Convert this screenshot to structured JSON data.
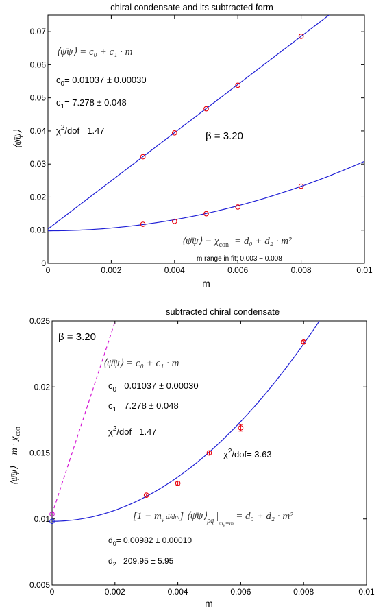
{
  "chart_data": [
    {
      "type": "scatter",
      "title": "chiral condensate and its subtracted form",
      "xlabel": "m",
      "ylabel": "⟨ψ̄ψ⟩",
      "xlim": [
        0,
        0.01
      ],
      "ylim": [
        0,
        0.075
      ],
      "xticks": [
        "0",
        "0.002",
        "0.004",
        "0.006",
        "0.008",
        "0.01"
      ],
      "yticks": [
        "0",
        "0.01",
        "0.02",
        "0.03",
        "0.04",
        "0.05",
        "0.06",
        "0.07"
      ],
      "grid": false,
      "series": [
        {
          "x": [
            0.003,
            0.004,
            0.005,
            0.006,
            0.008
          ],
          "values": [
            0.0322,
            0.0394,
            0.0467,
            0.0538,
            0.0686
          ],
          "color": "#e8000b"
        },
        {
          "x": [
            0.003,
            0.004,
            0.005,
            0.006,
            0.008
          ],
          "values": [
            0.0118,
            0.0127,
            0.015,
            0.017,
            0.0233
          ],
          "color": "#e8000b"
        }
      ],
      "fits": [
        {
          "kind": "linear",
          "c0": 0.01037,
          "c1": 7.278,
          "color": "#1f1fd6"
        },
        {
          "kind": "quadratic",
          "d0": 0.00982,
          "d2": 209.95,
          "color": "#1f1fd6"
        }
      ],
      "annotations": {
        "fit1_formula": "⟨ψ̄ψ⟩ = c₀ + c₁ · m",
        "c0_label": "c",
        "c0_sub": "0",
        "c0_value": "=  0.01037 ± 0.00030",
        "c1_label": "c",
        "c1_sub": "1",
        "c1_value": "=  7.278 ± 0.048",
        "chi_label": "χ",
        "chi_sup": "2",
        "chi_value": "/dof= 1.47",
        "beta": "β = 3.20",
        "fit2_formula": "⟨ψ̄ψ⟩ − χ",
        "fit2_sub": "con",
        "fit2_rhs": "= d₀ + d₂ · m²",
        "range_note": "m range in fit:  0.003 − 0.008"
      }
    },
    {
      "type": "scatter",
      "title": "subtracted chiral condensate",
      "xlabel": "m",
      "ylabel": "⟨ψ̄ψ⟩ − m · χ",
      "ylabel_sub": "con",
      "xlim": [
        0,
        0.01
      ],
      "ylim": [
        0.005,
        0.025
      ],
      "xticks": [
        "0",
        "0.002",
        "0.004",
        "0.006",
        "0.008",
        "0.01"
      ],
      "yticks": [
        "0.005",
        "0.01",
        "0.015",
        "0.02",
        "0.025"
      ],
      "grid": false,
      "series": [
        {
          "x": [
            0.003,
            0.004,
            0.005,
            0.006,
            0.008
          ],
          "values": [
            0.0118,
            0.0127,
            0.015,
            0.0169,
            0.0234
          ],
          "err": [
            8e-05,
            0.00015,
            0.00015,
            0.00025,
            0.0001
          ],
          "color": "#e8000b"
        },
        {
          "x": [
            0
          ],
          "values": [
            0.00982
          ],
          "color": "#1f1fd6"
        },
        {
          "x": [
            0
          ],
          "values": [
            0.01037
          ],
          "color": "#d417d4"
        }
      ],
      "fits": [
        {
          "kind": "quadratic",
          "d0": 0.00982,
          "d2": 209.95,
          "color": "#1f1fd6",
          "style": "solid"
        },
        {
          "kind": "linear",
          "c0": 0.01037,
          "c1": 7.278,
          "color": "#d417d4",
          "style": "dashed"
        }
      ],
      "annotations": {
        "beta": "β = 3.20",
        "fit1_formula": "⟨ψ̄ψ⟩ = c₀ + c₁ · m",
        "c0_label": "c",
        "c0_sub": "0",
        "c0_value": "=  0.01037 ± 0.00030",
        "c1_label": "c",
        "c1_sub": "1",
        "c1_value": "=  7.278 ± 0.048",
        "chi1_label": "χ",
        "chi1_sup": "2",
        "chi1_value": "/dof= 1.47",
        "chi2_label": "χ",
        "chi2_sup": "2",
        "chi2_value": "/dof= 3.63",
        "fit2_formula": "[1 − m",
        "fit2_v": "v",
        "fit2_mid": " d/dm",
        "fit2_rest": "] ⟨ψ̄ψ⟩",
        "fit2_pq": "pq",
        "fit2_eval": "m",
        "fit2_eval_sub": "v",
        "fit2_eval_rest": "=m",
        "fit2_rhs": "= d₀ + d₂ · m²",
        "d0_label": "d",
        "d0_sub": "0",
        "d0_value": "=  0.00982 ± 0.00010",
        "d2_label": "d",
        "d2_sub": "2",
        "d2_value": "=  209.95 ± 5.95"
      }
    }
  ]
}
